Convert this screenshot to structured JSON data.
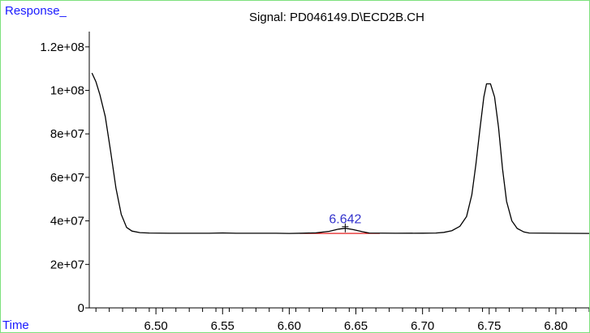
{
  "chart_data": {
    "type": "line",
    "title": "Signal: PD046149.D\\ECD2B.CH",
    "ylabel": "Response_",
    "xlabel": "Time",
    "xlim": [
      6.45,
      6.825
    ],
    "ylim": [
      0,
      130000000
    ],
    "x_ticks": [
      6.5,
      6.55,
      6.6,
      6.65,
      6.7,
      6.75,
      6.8
    ],
    "x_tick_labels": [
      "6.50",
      "6.55",
      "6.60",
      "6.65",
      "6.70",
      "6.75",
      "6.80"
    ],
    "y_ticks": [
      0,
      20000000,
      40000000,
      60000000,
      80000000,
      100000000,
      120000000
    ],
    "y_tick_labels": [
      "0",
      "2e+07",
      "4e+07",
      "6e+07",
      "8e+07",
      "1e+08",
      "1.2e+08"
    ],
    "grid": false,
    "series": [
      {
        "color": "#000000",
        "points": [
          [
            6.452,
            108000000
          ],
          [
            6.455,
            104000000
          ],
          [
            6.458,
            98000000
          ],
          [
            6.462,
            88000000
          ],
          [
            6.466,
            72000000
          ],
          [
            6.47,
            55000000
          ],
          [
            6.474,
            43000000
          ],
          [
            6.478,
            37000000
          ],
          [
            6.482,
            35300000
          ],
          [
            6.488,
            34600000
          ],
          [
            6.495,
            34400000
          ],
          [
            6.51,
            34300000
          ],
          [
            6.54,
            34300000
          ],
          [
            6.55,
            34450000
          ],
          [
            6.56,
            34300000
          ],
          [
            6.59,
            34300000
          ],
          [
            6.6,
            34250000
          ],
          [
            6.61,
            34350000
          ],
          [
            6.62,
            34500000
          ],
          [
            6.63,
            35200000
          ],
          [
            6.637,
            36200000
          ],
          [
            6.642,
            36600000
          ],
          [
            6.648,
            36000000
          ],
          [
            6.655,
            35000000
          ],
          [
            6.66,
            34400000
          ],
          [
            6.68,
            34300000
          ],
          [
            6.7,
            34350000
          ],
          [
            6.71,
            34400000
          ],
          [
            6.716,
            34700000
          ],
          [
            6.722,
            35500000
          ],
          [
            6.728,
            37500000
          ],
          [
            6.733,
            42000000
          ],
          [
            6.737,
            52000000
          ],
          [
            6.74,
            66000000
          ],
          [
            6.743,
            82000000
          ],
          [
            6.746,
            97000000
          ],
          [
            6.748,
            103000000
          ],
          [
            6.751,
            103000000
          ],
          [
            6.754,
            97000000
          ],
          [
            6.757,
            83000000
          ],
          [
            6.76,
            64000000
          ],
          [
            6.763,
            49000000
          ],
          [
            6.767,
            40000000
          ],
          [
            6.771,
            36500000
          ],
          [
            6.776,
            34900000
          ],
          [
            6.78,
            34400000
          ],
          [
            6.8,
            34300000
          ],
          [
            6.825,
            34250000
          ]
        ]
      }
    ],
    "annotations": [
      {
        "label": "6.642",
        "x": 6.642,
        "y": 36600000,
        "color": "#3333cc"
      }
    ],
    "baseline": {
      "color": "#e00000",
      "x_start": 6.608,
      "x_end": 6.668,
      "y": 34250000
    }
  }
}
